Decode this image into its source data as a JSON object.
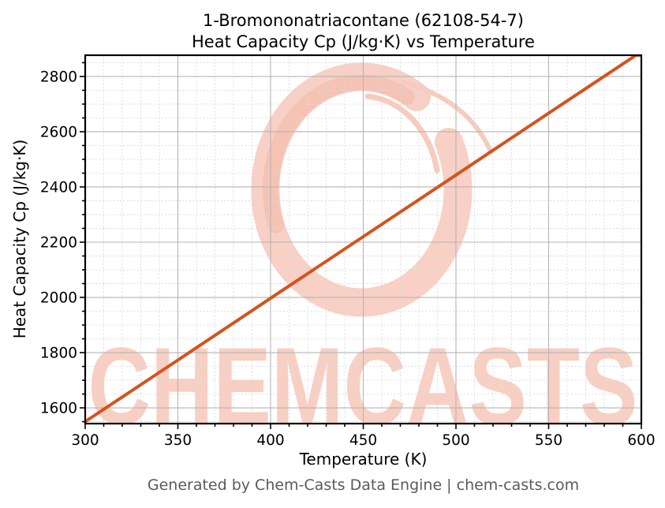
{
  "figure": {
    "title_line1": "1-Bromononatriacontane (62108-54-7)",
    "title_line2": "Heat Capacity Cp (J/kg·K) vs Temperature",
    "footer": "Generated by Chem-Casts Data Engine | chem-casts.com"
  },
  "watermark": {
    "text": "CHEMCASTS",
    "text_color": "#f8cfc3",
    "logo_color": "#f8d0c5",
    "logo_accent_color": "#f5c3b4",
    "logo_thin_color": "#f7cbbd"
  },
  "chart_data": {
    "type": "line",
    "title": "1-Bromononatriacontane (62108-54-7) Heat Capacity Cp (J/kg·K) vs Temperature",
    "xlabel": "Temperature (K)",
    "ylabel": "Heat Capacity Cp (J/kg·K)",
    "series_name": "Heat Capacity Cp",
    "x": [
      300,
      350,
      400,
      450,
      500,
      550,
      600
    ],
    "y": [
      1550,
      1773,
      1997,
      2220,
      2443,
      2667,
      2890
    ],
    "xlim": [
      300,
      600
    ],
    "ylim": [
      1543,
      2877
    ],
    "xticks": [
      300,
      350,
      400,
      450,
      500,
      550,
      600
    ],
    "yticks": [
      1600,
      1800,
      2000,
      2200,
      2400,
      2600,
      2800
    ],
    "x_minor_step": 10,
    "y_minor_step": 50,
    "grid": true,
    "legend": "none",
    "line_color": "#d4531d",
    "line_width": 4,
    "major_grid_color": "#b5b5b5",
    "minor_grid_color": "#d9d9d9",
    "tick_label_color": "#000000",
    "spine_color": "#000000"
  }
}
